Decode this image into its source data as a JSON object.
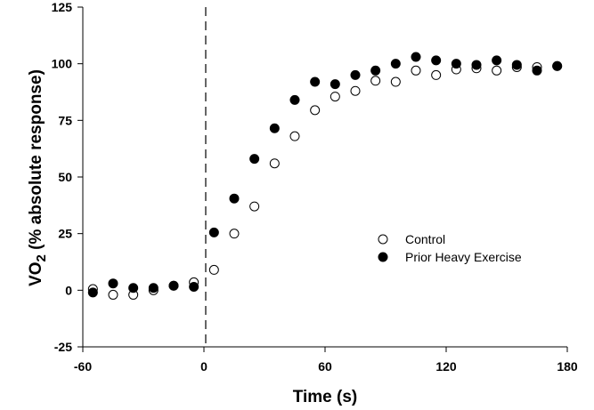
{
  "chart_data": {
    "type": "scatter",
    "title": "",
    "xlabel": "Time (s)",
    "ylabel": {
      "prefix": "VO",
      "subscript": "2",
      "suffix": " (% absolute response)"
    },
    "xlim": [
      -60,
      180
    ],
    "ylim": [
      -25,
      125
    ],
    "xticks": [
      -60,
      0,
      60,
      120,
      180
    ],
    "yticks": [
      -25,
      0,
      25,
      50,
      75,
      100,
      125
    ],
    "grid": false,
    "legend_position": "right-middle",
    "vertical_reference_line": {
      "x": 0,
      "style": "dashed"
    },
    "series": [
      {
        "name": "Control",
        "marker": "open-circle",
        "x": [
          -55,
          -45,
          -35,
          -25,
          -15,
          -5,
          5,
          15,
          25,
          35,
          45,
          55,
          65,
          75,
          85,
          95,
          105,
          115,
          125,
          135,
          145,
          155,
          165,
          175
        ],
        "y": [
          0.5,
          -2,
          -2,
          0,
          2,
          3.5,
          9,
          25,
          37,
          56,
          68,
          79.5,
          85.5,
          88,
          92.5,
          92,
          97,
          95,
          97.5,
          98,
          97,
          98.5,
          98.5,
          99
        ]
      },
      {
        "name": "Prior Heavy Exercise",
        "marker": "filled-circle",
        "x": [
          -55,
          -45,
          -35,
          -25,
          -15,
          -5,
          5,
          15,
          25,
          35,
          45,
          55,
          65,
          75,
          85,
          95,
          105,
          115,
          125,
          135,
          145,
          155,
          165,
          175
        ],
        "y": [
          -1,
          3,
          1,
          1,
          2,
          1.5,
          25.5,
          40.5,
          58,
          71.5,
          84,
          92,
          91,
          95,
          97,
          100,
          103,
          101.5,
          100,
          99.5,
          101.5,
          99.5,
          97,
          99
        ]
      }
    ]
  }
}
